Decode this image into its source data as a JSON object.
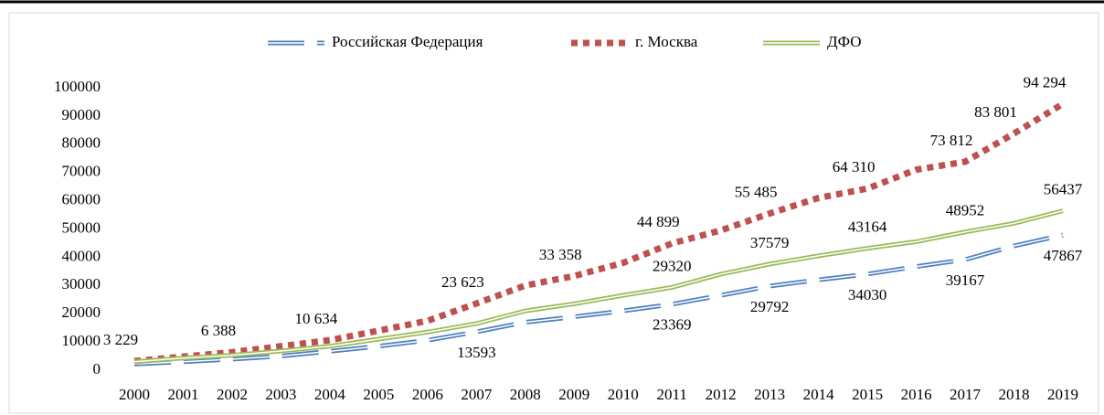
{
  "chart_data": {
    "type": "line",
    "categories": [
      "2000",
      "2001",
      "2002",
      "2003",
      "2004",
      "2005",
      "2006",
      "2007",
      "2008",
      "2009",
      "2010",
      "2011",
      "2012",
      "2013",
      "2014",
      "2015",
      "2016",
      "2017",
      "2018",
      "2019"
    ],
    "ylim": [
      0,
      100000
    ],
    "yticks": [
      0,
      10000,
      20000,
      30000,
      40000,
      50000,
      60000,
      70000,
      80000,
      90000,
      100000
    ],
    "legend": "top",
    "series": [
      {
        "name": "Российская Федерация",
        "color": "#4f81bd",
        "style": "double-dashed",
        "values": [
          2200,
          3000,
          3900,
          5000,
          6700,
          8500,
          10600,
          13593,
          17000,
          18900,
          21000,
          23369,
          26500,
          29792,
          32000,
          34030,
          36700,
          39167,
          44000,
          47867
        ],
        "value_labels": [
          null,
          null,
          null,
          null,
          null,
          null,
          null,
          "13593",
          null,
          null,
          null,
          "23369",
          null,
          "29792",
          null,
          "34030",
          null,
          "39167",
          null,
          "47867"
        ]
      },
      {
        "name": "г. Москва",
        "color": "#c0504d",
        "style": "dotted",
        "values": [
          3229,
          4800,
          6388,
          8500,
          10634,
          14000,
          17500,
          23623,
          30000,
          33358,
          38000,
          44899,
          49500,
          55485,
          61000,
          64310,
          71000,
          73812,
          83801,
          94294
        ],
        "value_labels": [
          "3 229",
          null,
          "6 388",
          null,
          "10 634",
          null,
          null,
          "23 623",
          null,
          "33 358",
          null,
          "44 899",
          null,
          "55 485",
          null,
          "64 310",
          null,
          "73 812",
          "83 801",
          "94 294"
        ]
      },
      {
        "name": "ДФО",
        "color": "#9bbb59",
        "style": "double",
        "values": [
          3000,
          4300,
          5300,
          6800,
          8500,
          11000,
          13500,
          16500,
          21000,
          23500,
          26500,
          29320,
          34000,
          37579,
          40500,
          43164,
          45500,
          48952,
          52000,
          56437
        ],
        "value_labels": [
          null,
          null,
          null,
          null,
          null,
          null,
          null,
          null,
          null,
          null,
          null,
          "29320",
          null,
          "37579",
          null,
          "43164",
          null,
          "48952",
          null,
          "56437"
        ]
      }
    ]
  }
}
